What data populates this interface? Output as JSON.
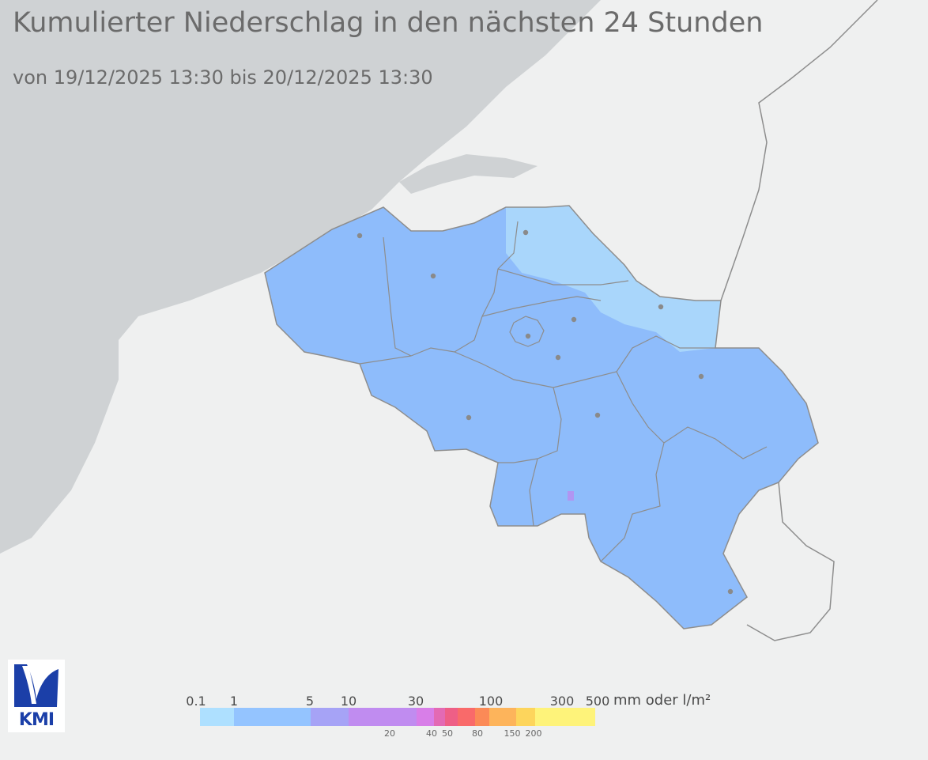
{
  "title": "Kumulierter Niederschlag in den nächsten 24 Stunden",
  "subtitle": "von 19/12/2025 13:30  bis 20/12/2025 13:30",
  "logo_text": "KMI",
  "legend": {
    "unit": "mm oder l/m²",
    "top_labels": [
      "0.1",
      "1",
      "5",
      "10",
      "30",
      "100",
      "300",
      "500"
    ],
    "bottom_labels": [
      "20",
      "40",
      "50",
      "80",
      "150",
      "200"
    ],
    "colors": [
      "#aee0ff",
      "#94c4ff",
      "#a6a3f6",
      "#c08cf0",
      "#d87ee8",
      "#e36ab4",
      "#ee5f86",
      "#f96a6a",
      "#fb8a57",
      "#fdb45b",
      "#fdd55c",
      "#fef37a"
    ]
  },
  "map": {
    "colors": {
      "sea": "#cfd2d4",
      "land": "#eff0f0",
      "precip_main": "#8ebcfb",
      "precip_light": "#a9d6fb",
      "precip_spot": "#b195f2",
      "border": "#8d8d8d",
      "city": "#8a8a8a"
    }
  }
}
